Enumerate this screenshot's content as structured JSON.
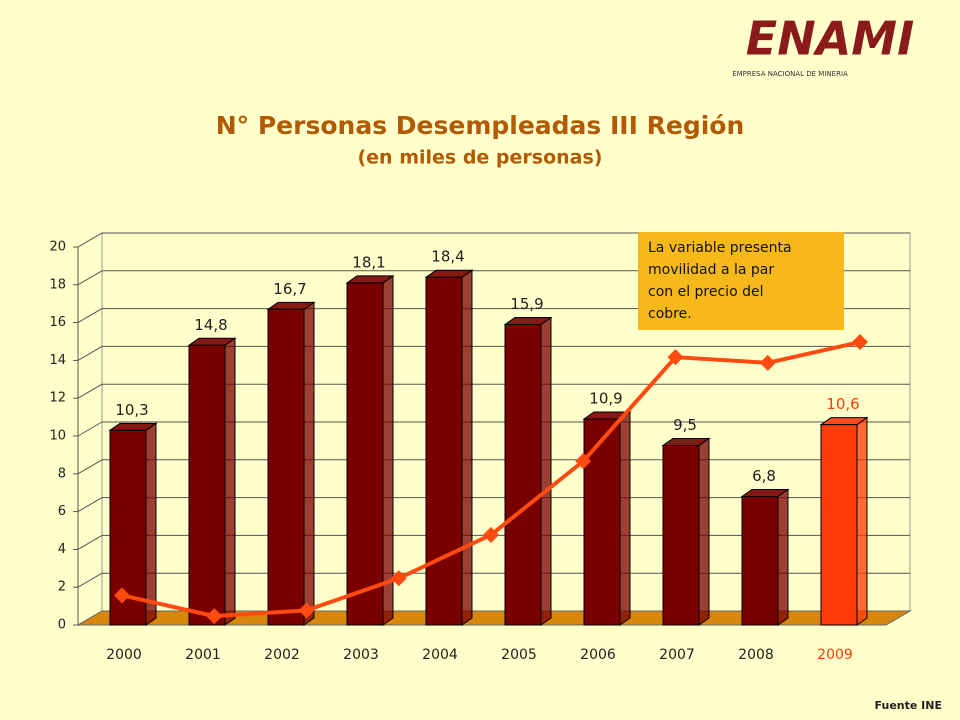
{
  "logo": {
    "name": "ENAMI",
    "tagline": "EMPRESA NACIONAL DE MINERIA"
  },
  "source": "Fuente INE",
  "chart_data": {
    "type": "bar",
    "title": "N° Personas Desempleadas III Región",
    "subtitle": "(en miles de personas)",
    "categories": [
      "2000",
      "2001",
      "2002",
      "2003",
      "2004",
      "2005",
      "2006",
      "2007",
      "2008",
      "2009"
    ],
    "values": [
      10.3,
      14.8,
      16.7,
      18.1,
      18.4,
      15.9,
      10.9,
      9.5,
      6.8,
      10.6
    ],
    "value_labels": [
      "10,3",
      "14,8",
      "16,7",
      "18,1",
      "18,4",
      "15,9",
      "10,9",
      "9,5",
      "6,8",
      "10,6"
    ],
    "bar_colors": [
      "#7a0000",
      "#7a0000",
      "#7a0000",
      "#7a0000",
      "#7a0000",
      "#7a0000",
      "#7a0000",
      "#7a0000",
      "#7a0000",
      "#ff3b0a"
    ],
    "label_colors": [
      "#222222",
      "#222222",
      "#222222",
      "#222222",
      "#222222",
      "#222222",
      "#222222",
      "#222222",
      "#222222",
      "#ff3b0a"
    ],
    "line_values": [
      1.2,
      0.1,
      0.4,
      2.1,
      4.4,
      8.3,
      13.8,
      13.5,
      14.6
    ],
    "line_color": "#ff4a12",
    "ylim": [
      0,
      20
    ],
    "yticks": [
      0,
      2,
      4,
      6,
      8,
      10,
      12,
      14,
      16,
      18,
      20
    ],
    "grid": true,
    "annotation": [
      "La variable presenta",
      "movilidad a la par",
      "con el  precio del",
      "cobre."
    ]
  }
}
